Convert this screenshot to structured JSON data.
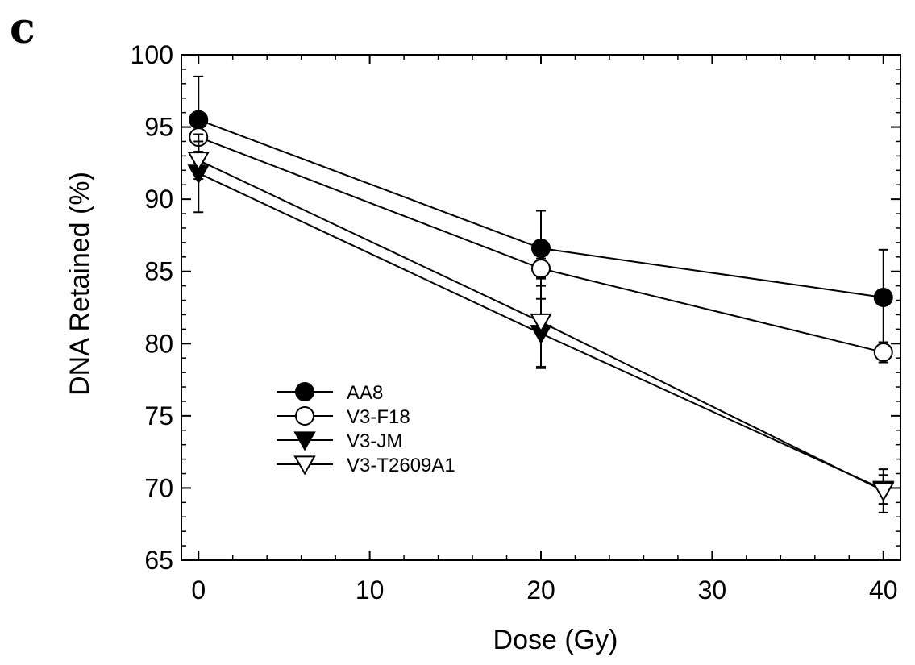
{
  "panel_label": "c",
  "chart_data": {
    "type": "line",
    "xlabel": "Dose (Gy)",
    "ylabel": "DNA Retained (%)",
    "xlim": [
      -1,
      41
    ],
    "ylim": [
      65,
      100
    ],
    "xticks": [
      0,
      10,
      20,
      30,
      40
    ],
    "yticks": [
      65,
      70,
      75,
      80,
      85,
      90,
      95,
      100
    ],
    "legend_position": "lower-left",
    "grid": false,
    "series": [
      {
        "name": "AA8",
        "marker": "circle-filled",
        "x": [
          0,
          20,
          40
        ],
        "y": [
          95.5,
          86.6,
          83.2
        ],
        "err": [
          3.0,
          2.6,
          3.3
        ]
      },
      {
        "name": "V3-F18",
        "marker": "circle-open",
        "x": [
          0,
          20,
          40
        ],
        "y": [
          94.3,
          85.2,
          79.4
        ],
        "err": [
          1.0,
          0.7,
          0.7
        ]
      },
      {
        "name": "V3-JM",
        "marker": "triangle-down-filled",
        "x": [
          0,
          20,
          40
        ],
        "y": [
          91.8,
          80.7,
          69.9
        ],
        "err": [
          2.7,
          2.4,
          1.0
        ]
      },
      {
        "name": "V3-T2609A1",
        "marker": "triangle-down-open",
        "x": [
          0,
          20,
          40
        ],
        "y": [
          92.7,
          81.5,
          69.8
        ],
        "err": [
          1.3,
          3.1,
          1.5
        ]
      }
    ]
  }
}
